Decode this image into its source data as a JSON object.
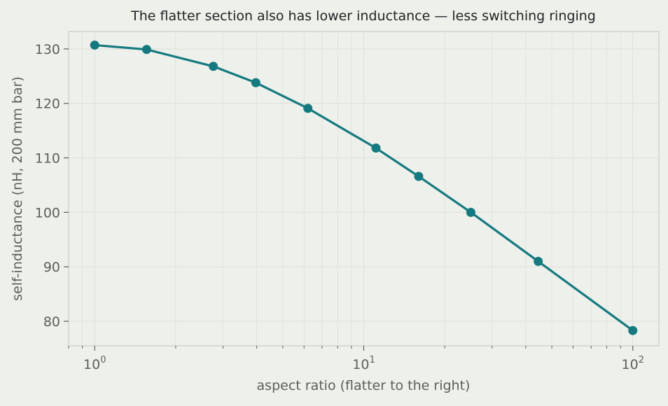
{
  "chart_data": {
    "type": "line",
    "title": "The flatter section also has lower inductance — less switching ringing",
    "xlabel": "aspect ratio (flatter to the right)",
    "ylabel": "self-inductance (nH, 200 mm bar)",
    "x_scale": "log",
    "xlim": [
      0.8,
      125
    ],
    "ylim": [
      75.5,
      133.2
    ],
    "x_ticks": [
      {
        "value": 1,
        "base": "10",
        "exp": "0"
      },
      {
        "value": 10,
        "base": "10",
        "exp": "1"
      },
      {
        "value": 100,
        "base": "10",
        "exp": "2"
      }
    ],
    "y_ticks": [
      80,
      90,
      100,
      110,
      120,
      130
    ],
    "grid": true,
    "series": [
      {
        "color": "#157a80",
        "x": [
          1.0,
          1.56,
          2.76,
          3.97,
          6.2,
          11.1,
          16.0,
          25.0,
          44.5,
          100.0
        ],
        "y": [
          130.7,
          129.9,
          126.8,
          123.8,
          119.1,
          111.8,
          106.6,
          100.0,
          91.0,
          78.3
        ]
      }
    ]
  },
  "colors": {
    "background": "#eef0eb",
    "axes_border": "#c9ccc5",
    "grid": "#dfe2db",
    "text": "#5c605b",
    "title": "#1f2320",
    "line": "#157a80"
  }
}
